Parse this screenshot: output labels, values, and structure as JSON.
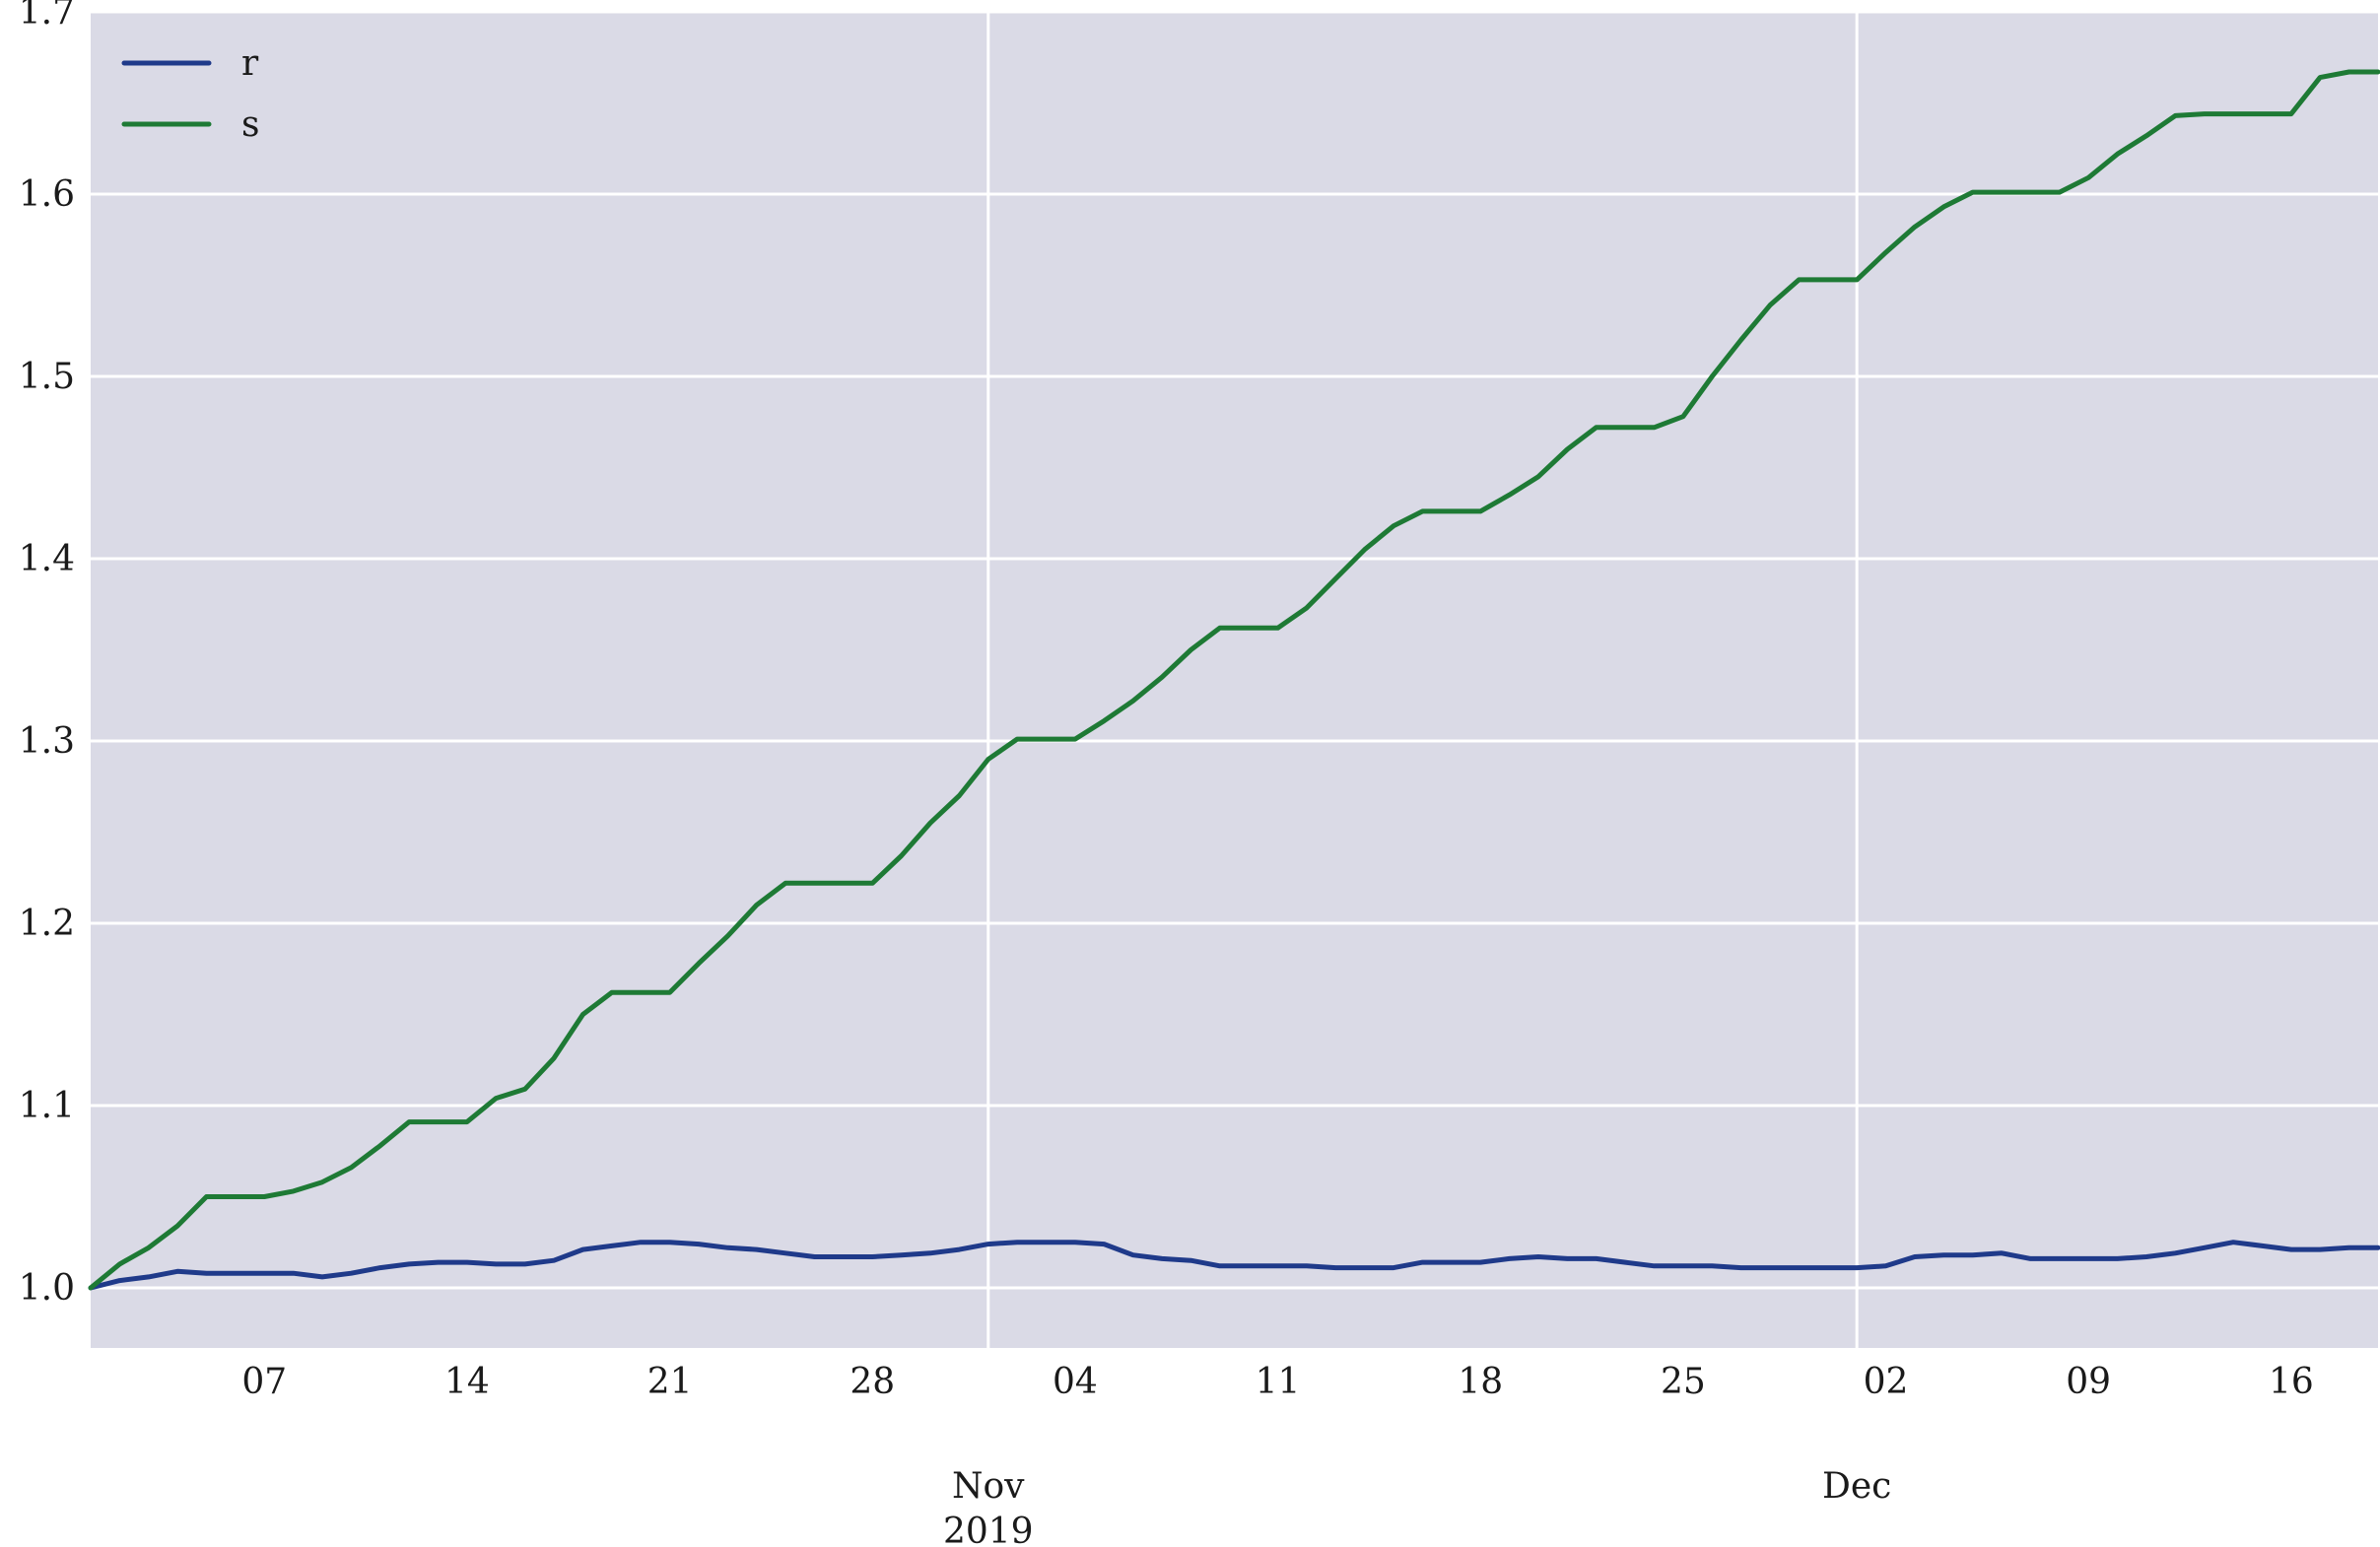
{
  "chart_data": {
    "type": "line",
    "x_range": [
      "2019-10-01",
      "2019-12-19"
    ],
    "ylim": [
      0.967,
      1.7
    ],
    "grid": true,
    "legend_position": "top-left",
    "background_color": "#dadae6",
    "grid_color": "#ffffff",
    "y_ticks": [
      {
        "value": 1.0,
        "label": "1.0"
      },
      {
        "value": 1.1,
        "label": "1.1"
      },
      {
        "value": 1.2,
        "label": "1.2"
      },
      {
        "value": 1.3,
        "label": "1.3"
      },
      {
        "value": 1.4,
        "label": "1.4"
      },
      {
        "value": 1.5,
        "label": "1.5"
      },
      {
        "value": 1.6,
        "label": "1.6"
      },
      {
        "value": 1.7,
        "label": "1.7"
      }
    ],
    "x_minor_ticks": [
      {
        "date": "2019-10-07",
        "label": "07"
      },
      {
        "date": "2019-10-14",
        "label": "14"
      },
      {
        "date": "2019-10-21",
        "label": "21"
      },
      {
        "date": "2019-10-28",
        "label": "28"
      },
      {
        "date": "2019-11-04",
        "label": "04"
      },
      {
        "date": "2019-11-11",
        "label": "11"
      },
      {
        "date": "2019-11-18",
        "label": "18"
      },
      {
        "date": "2019-11-25",
        "label": "25"
      },
      {
        "date": "2019-12-02",
        "label": "02"
      },
      {
        "date": "2019-12-09",
        "label": "09"
      },
      {
        "date": "2019-12-16",
        "label": "16"
      }
    ],
    "x_major_ticks": [
      {
        "date": "2019-11-01",
        "label": "Nov",
        "sublabel": "2019"
      },
      {
        "date": "2019-12-01",
        "label": "Dec",
        "sublabel": ""
      }
    ],
    "series": [
      {
        "name": "r",
        "color": "#1f3a8a",
        "x": [
          "2019-10-01",
          "2019-10-02",
          "2019-10-03",
          "2019-10-04",
          "2019-10-05",
          "2019-10-06",
          "2019-10-07",
          "2019-10-08",
          "2019-10-09",
          "2019-10-10",
          "2019-10-11",
          "2019-10-12",
          "2019-10-13",
          "2019-10-14",
          "2019-10-15",
          "2019-10-16",
          "2019-10-17",
          "2019-10-18",
          "2019-10-19",
          "2019-10-20",
          "2019-10-21",
          "2019-10-22",
          "2019-10-23",
          "2019-10-24",
          "2019-10-25",
          "2019-10-26",
          "2019-10-27",
          "2019-10-28",
          "2019-10-29",
          "2019-10-30",
          "2019-10-31",
          "2019-11-01",
          "2019-11-02",
          "2019-11-03",
          "2019-11-04",
          "2019-11-05",
          "2019-11-06",
          "2019-11-07",
          "2019-11-08",
          "2019-11-09",
          "2019-11-10",
          "2019-11-11",
          "2019-11-12",
          "2019-11-13",
          "2019-11-14",
          "2019-11-15",
          "2019-11-16",
          "2019-11-17",
          "2019-11-18",
          "2019-11-19",
          "2019-11-20",
          "2019-11-21",
          "2019-11-22",
          "2019-11-23",
          "2019-11-24",
          "2019-11-25",
          "2019-11-26",
          "2019-11-27",
          "2019-11-28",
          "2019-11-29",
          "2019-11-30",
          "2019-12-01",
          "2019-12-02",
          "2019-12-03",
          "2019-12-04",
          "2019-12-05",
          "2019-12-06",
          "2019-12-07",
          "2019-12-08",
          "2019-12-09",
          "2019-12-10",
          "2019-12-11",
          "2019-12-12",
          "2019-12-13",
          "2019-12-14",
          "2019-12-15",
          "2019-12-16",
          "2019-12-17",
          "2019-12-18",
          "2019-12-19"
        ],
        "values": [
          1.0,
          1.004,
          1.006,
          1.009,
          1.008,
          1.008,
          1.008,
          1.008,
          1.006,
          1.008,
          1.011,
          1.013,
          1.014,
          1.014,
          1.013,
          1.013,
          1.015,
          1.021,
          1.023,
          1.025,
          1.025,
          1.024,
          1.022,
          1.021,
          1.019,
          1.017,
          1.017,
          1.017,
          1.018,
          1.019,
          1.021,
          1.024,
          1.025,
          1.025,
          1.025,
          1.024,
          1.018,
          1.016,
          1.015,
          1.012,
          1.012,
          1.012,
          1.012,
          1.011,
          1.011,
          1.011,
          1.014,
          1.014,
          1.014,
          1.016,
          1.017,
          1.016,
          1.016,
          1.014,
          1.012,
          1.012,
          1.012,
          1.011,
          1.011,
          1.011,
          1.011,
          1.011,
          1.012,
          1.017,
          1.018,
          1.018,
          1.019,
          1.016,
          1.016,
          1.016,
          1.016,
          1.017,
          1.019,
          1.022,
          1.025,
          1.023,
          1.021,
          1.021,
          1.022,
          1.022
        ]
      },
      {
        "name": "s",
        "color": "#1e7a35",
        "x": [
          "2019-10-01",
          "2019-10-02",
          "2019-10-03",
          "2019-10-04",
          "2019-10-05",
          "2019-10-06",
          "2019-10-07",
          "2019-10-08",
          "2019-10-09",
          "2019-10-10",
          "2019-10-11",
          "2019-10-12",
          "2019-10-13",
          "2019-10-14",
          "2019-10-15",
          "2019-10-16",
          "2019-10-17",
          "2019-10-18",
          "2019-10-19",
          "2019-10-20",
          "2019-10-21",
          "2019-10-22",
          "2019-10-23",
          "2019-10-24",
          "2019-10-25",
          "2019-10-26",
          "2019-10-27",
          "2019-10-28",
          "2019-10-29",
          "2019-10-30",
          "2019-10-31",
          "2019-11-01",
          "2019-11-02",
          "2019-11-03",
          "2019-11-04",
          "2019-11-05",
          "2019-11-06",
          "2019-11-07",
          "2019-11-08",
          "2019-11-09",
          "2019-11-10",
          "2019-11-11",
          "2019-11-12",
          "2019-11-13",
          "2019-11-14",
          "2019-11-15",
          "2019-11-16",
          "2019-11-17",
          "2019-11-18",
          "2019-11-19",
          "2019-11-20",
          "2019-11-21",
          "2019-11-22",
          "2019-11-23",
          "2019-11-24",
          "2019-11-25",
          "2019-11-26",
          "2019-11-27",
          "2019-11-28",
          "2019-11-29",
          "2019-11-30",
          "2019-12-01",
          "2019-12-02",
          "2019-12-03",
          "2019-12-04",
          "2019-12-05",
          "2019-12-06",
          "2019-12-07",
          "2019-12-08",
          "2019-12-09",
          "2019-12-10",
          "2019-12-11",
          "2019-12-12",
          "2019-12-13",
          "2019-12-14",
          "2019-12-15",
          "2019-12-16",
          "2019-12-17",
          "2019-12-18",
          "2019-12-19"
        ],
        "values": [
          1.0,
          1.013,
          1.022,
          1.034,
          1.05,
          1.05,
          1.05,
          1.053,
          1.058,
          1.066,
          1.078,
          1.091,
          1.091,
          1.091,
          1.104,
          1.109,
          1.126,
          1.15,
          1.162,
          1.162,
          1.162,
          1.178,
          1.193,
          1.21,
          1.222,
          1.222,
          1.222,
          1.222,
          1.237,
          1.255,
          1.27,
          1.29,
          1.301,
          1.301,
          1.301,
          1.311,
          1.322,
          1.335,
          1.35,
          1.362,
          1.362,
          1.362,
          1.373,
          1.389,
          1.405,
          1.418,
          1.426,
          1.426,
          1.426,
          1.435,
          1.445,
          1.46,
          1.472,
          1.472,
          1.472,
          1.478,
          1.5,
          1.52,
          1.539,
          1.553,
          1.553,
          1.553,
          1.568,
          1.582,
          1.593,
          1.601,
          1.601,
          1.601,
          1.601,
          1.609,
          1.622,
          1.632,
          1.643,
          1.644,
          1.644,
          1.644,
          1.644,
          1.664,
          1.667,
          1.667
        ]
      }
    ]
  }
}
